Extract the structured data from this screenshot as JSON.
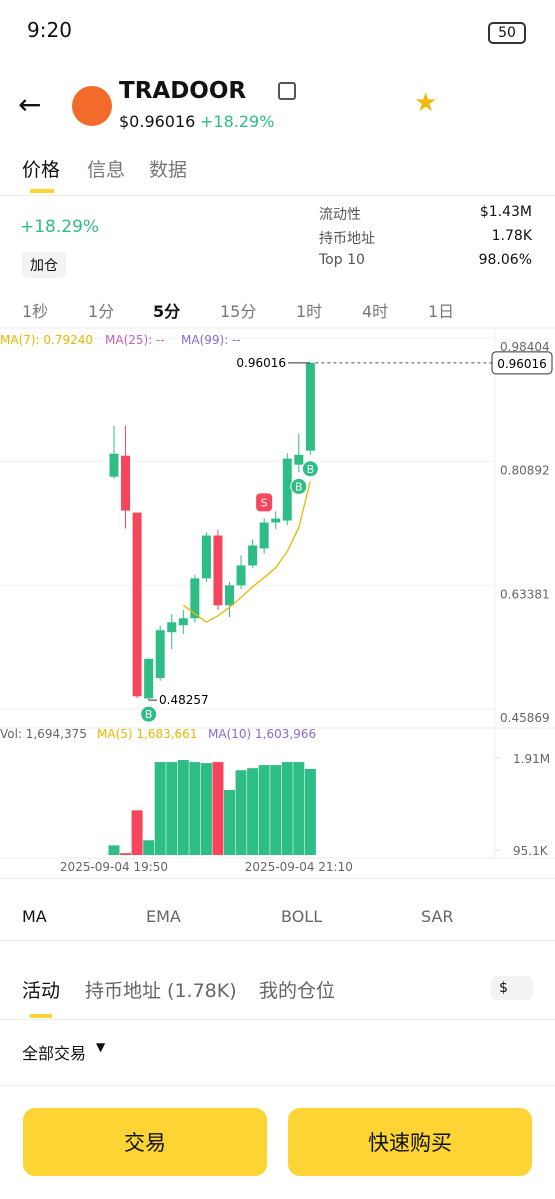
{
  "status_bar": {
    "time": "9:20",
    "battery": "50"
  },
  "header": {
    "name": "TRADOOR",
    "price": "$0.96016",
    "change": "+18.29%"
  },
  "tabs": [
    "价格",
    "信息",
    "数据"
  ],
  "summary": {
    "change": "+18.29%",
    "add_button": "加仓",
    "stats": [
      {
        "label": "流动性",
        "value": "$1.43M"
      },
      {
        "label": "持币地址",
        "value": "1.78K"
      },
      {
        "label": "Top 10",
        "value": "98.06%"
      }
    ]
  },
  "intervals": [
    "1秒",
    "1分",
    "5分",
    "15分",
    "1时",
    "4时",
    "1日"
  ],
  "chart_data": {
    "type": "candlestick",
    "categories": [
      "2025-09-04 19:50",
      null,
      null,
      null,
      null,
      null,
      null,
      null,
      null,
      null,
      null,
      null,
      null,
      null,
      null,
      null,
      "2025-09-04 21:10",
      null
    ],
    "candles": [
      {
        "open": 0.799,
        "high": 0.8711,
        "low": 0.7962,
        "close": 0.8315
      },
      {
        "open": 0.8287,
        "high": 0.8711,
        "low": 0.7256,
        "close": 0.751
      },
      {
        "open": 0.7482,
        "high": 0.7482,
        "low": 0.485,
        "close": 0.488
      },
      {
        "open": 0.485,
        "high": 0.542,
        "low": 0.48257,
        "close": 0.541
      },
      {
        "open": 0.514,
        "high": 0.588,
        "low": 0.51,
        "close": 0.5815
      },
      {
        "open": 0.5787,
        "high": 0.604,
        "low": 0.555,
        "close": 0.5928
      },
      {
        "open": 0.5886,
        "high": 0.61,
        "low": 0.576,
        "close": 0.5985
      },
      {
        "open": 0.5985,
        "high": 0.66,
        "low": 0.593,
        "close": 0.655
      },
      {
        "open": 0.655,
        "high": 0.72,
        "low": 0.65,
        "close": 0.7157
      },
      {
        "open": 0.7157,
        "high": 0.724,
        "low": 0.61,
        "close": 0.6169
      },
      {
        "open": 0.6169,
        "high": 0.65,
        "low": 0.6,
        "close": 0.6451
      },
      {
        "open": 0.6451,
        "high": 0.688,
        "low": 0.64,
        "close": 0.6733
      },
      {
        "open": 0.6733,
        "high": 0.71,
        "low": 0.67,
        "close": 0.7016
      },
      {
        "open": 0.6974,
        "high": 0.74,
        "low": 0.69,
        "close": 0.7341
      },
      {
        "open": 0.7341,
        "high": 0.75,
        "low": 0.725,
        "close": 0.7397
      },
      {
        "open": 0.7369,
        "high": 0.832,
        "low": 0.73,
        "close": 0.8245
      },
      {
        "open": 0.816,
        "high": 0.86,
        "low": 0.805,
        "close": 0.83
      },
      {
        "open": 0.8358,
        "high": 0.96016,
        "low": 0.83,
        "close": 0.96016
      }
    ],
    "up_color": "#2ebd85",
    "down_color": "#f6465d",
    "ylim": [
      0.45869,
      0.98404
    ],
    "yticks": [
      0.45869,
      0.63381,
      0.80892,
      0.98404
    ],
    "grid": true,
    "last_price": 0.96016,
    "ma_legend": [
      "MA(7): 0.79240",
      "MA(25): --",
      "MA(99): --"
    ],
    "ma7": {
      "color": "#e8b800",
      "values": [
        null,
        null,
        null,
        null,
        null,
        null,
        0.617,
        0.605,
        0.593,
        0.602,
        0.614,
        0.628,
        0.643,
        0.656,
        0.67,
        0.693,
        0.727,
        0.7924
      ]
    },
    "volume": [
      190000,
      36000,
      880000,
      290000,
      1830000,
      1830000,
      1870000,
      1830000,
      1810000,
      1830000,
      1280000,
      1670000,
      1710000,
      1770000,
      1770000,
      1830000,
      1830000,
      1694375
    ],
    "volume_legend": [
      "Vol: 1,694,375",
      "MA(5) 1,683,661",
      "MA(10) 1,603,966"
    ],
    "y2lim": [
      0,
      1910000
    ],
    "y2ticks": [
      {
        "value": 95100,
        "label": "95.1K"
      },
      {
        "value": 1910000,
        "label": "1.91M"
      }
    ],
    "markers": [
      {
        "candle": 3,
        "label": "B"
      },
      {
        "candle": 13,
        "label": "S"
      },
      {
        "candle": 16,
        "label": "B"
      },
      {
        "candle": 17,
        "label": "B"
      }
    ]
  },
  "indicators": [
    "MA",
    "EMA",
    "BOLL",
    "SAR"
  ],
  "activity_tabs": [
    "活动",
    "持币地址 (1.78K)",
    "我的仓位"
  ],
  "currency": "$",
  "filter": "全部交易",
  "buttons": [
    "交易",
    "快速购买"
  ]
}
